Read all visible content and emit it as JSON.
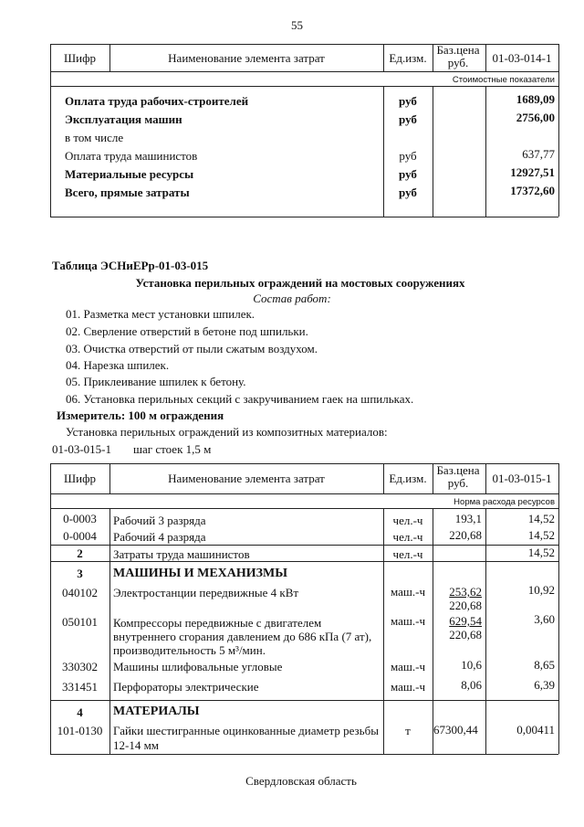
{
  "page_number": "55",
  "table1": {
    "header": {
      "code": "Шифр",
      "name": "Наименование элемента затрат",
      "unit": "Ед.изм.",
      "price": "Баз.цена руб.",
      "norm": "01-03-014-1"
    },
    "subheader": "Стоимостные показатели",
    "rows": [
      {
        "name": "Оплата труда рабочих-строителей",
        "unit": "руб",
        "value": "1689,09"
      },
      {
        "name": "Эксплуатация машин",
        "unit": "руб",
        "value": "2756,00"
      },
      {
        "name": "в том числе"
      },
      {
        "name": "Оплата труда машинистов",
        "unit": "руб",
        "value": "637,77"
      },
      {
        "name": "Материальные ресурсы",
        "unit": "руб",
        "value": "12927,51"
      },
      {
        "name": "Всего, прямые затраты",
        "unit": "руб",
        "value": "17372,60"
      }
    ]
  },
  "section": {
    "table_label": "Таблица  ЭСНиЕРр-01-03-015",
    "title": "Установка перильных ограждений на мостовых сооружениях",
    "works_heading": "Состав работ:",
    "works": [
      "01. Разметка мест установки шпилек.",
      "02. Сверление отверстий в бетоне под шпильки.",
      "03. Очистка отверстий от пыли сжатым воздухом.",
      "04. Нарезка шпилек.",
      "05. Приклеивание шпилек к бетону.",
      "06. Установка перильных секций с закручиванием гаек на шпильках."
    ],
    "meter": "Измеритель: 100 м ограждения",
    "description": "Установка перильных ограждений из композитных материалов:",
    "variant_code": "01-03-015-1",
    "variant_text": "шаг стоек 1,5 м"
  },
  "table2": {
    "header": {
      "code": "Шифр",
      "name": "Наименование элемента затрат",
      "unit": "Ед.изм.",
      "price": "Баз.цена руб.",
      "norm": "01-03-015-1"
    },
    "subheader": "Норма расхода ресурсов",
    "rows": [
      {
        "code": "0-0003",
        "name": "Рабочий 3 разряда",
        "unit": "чел.-ч",
        "price": "193,1",
        "value": "14,52"
      },
      {
        "code": "0-0004",
        "name": "Рабочий 4 разряда",
        "unit": "чел.-ч",
        "price": "220,68",
        "value": "14,52"
      },
      {
        "code": "2",
        "name": "Затраты труда машинистов",
        "unit": "чел.-ч",
        "value": "14,52"
      },
      {
        "code": "3",
        "name": "МАШИНЫ И МЕХАНИЗМЫ"
      },
      {
        "code": "040102",
        "name": "Электростанции передвижные 4 кВт",
        "unit": "маш.-ч",
        "price": "253,62",
        "price2": "220,68",
        "value": "10,92"
      },
      {
        "code": "050101",
        "name": "Компрессоры передвижные с двигателем",
        "name2": "внутреннего сгорания давлением до 686 кПа (7 ат),",
        "name3": "производительность 5 м³/мин.",
        "unit": "маш.-ч",
        "price": "629,54",
        "price2": "220,68",
        "value": "3,60"
      },
      {
        "code": "330302",
        "name": "Машины шлифовальные угловые",
        "unit": "маш.-ч",
        "price": "10,6",
        "value": "8,65"
      },
      {
        "code": "331451",
        "name": "Перфораторы электрические",
        "unit": "маш.-ч",
        "price": "8,06",
        "value": "6,39"
      },
      {
        "code": "4",
        "name": "МАТЕРИАЛЫ"
      },
      {
        "code": "101-0130",
        "name": "Гайки шестигранные оцинкованные диаметр резьбы",
        "name2": "12-14 мм",
        "unit": "т",
        "price": "67300,44",
        "value": "0,00411"
      }
    ]
  },
  "footer": "Свердловская область"
}
